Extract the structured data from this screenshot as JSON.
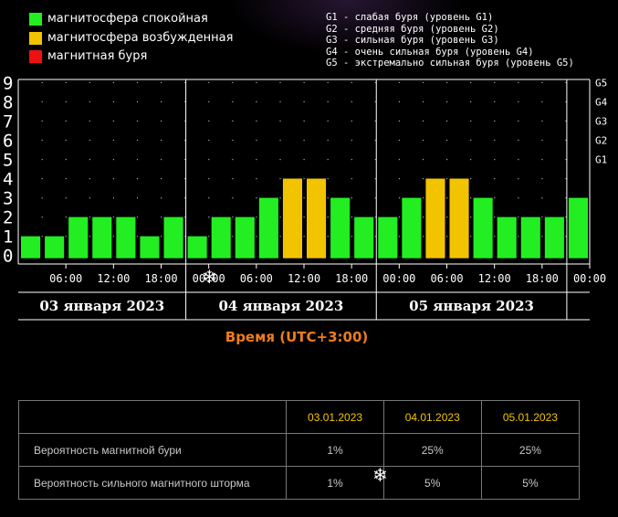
{
  "legend": [
    {
      "label": "магнитосфера спокойная",
      "color": "#22ee22"
    },
    {
      "label": "магнитосфера возбужденная",
      "color": "#f2c400"
    },
    {
      "label": "магнитная буря",
      "color": "#ee1111"
    }
  ],
  "storm_levels": [
    "G1 - слабая буря (уровень G1)",
    "G2 - средняя буря (уровень G2)",
    "G3 - сильная буря (уровень G3)",
    "G4 - очень сильная буря (уровень G4)",
    "G5 - экстремально сильная буря (уровень G5)"
  ],
  "chart_data": {
    "type": "bar",
    "ylim": [
      0,
      9
    ],
    "y_ticks": [
      "0",
      "1",
      "2",
      "3",
      "4",
      "5",
      "6",
      "7",
      "8",
      "9"
    ],
    "right_ticks": [
      "G1",
      "G2",
      "G3",
      "G4",
      "G5"
    ],
    "x_ticks": [
      "06:00",
      "12:00",
      "18:00",
      "00:00",
      "06:00",
      "12:00",
      "18:00",
      "00:00",
      "06:00",
      "12:00",
      "18:00",
      "00:00"
    ],
    "days": [
      "03 января 2023",
      "04 января 2023",
      "05 января 2023"
    ],
    "xlabel": "Время (UTC+3:00)",
    "values": [
      1,
      1,
      2,
      2,
      2,
      1,
      2,
      1,
      2,
      2,
      3,
      4,
      4,
      3,
      2,
      2,
      3,
      4,
      4,
      3,
      2,
      2,
      2,
      3
    ],
    "colors": {
      "quiet": "#22ee22",
      "active": "#f2c400",
      "storm": "#ee1111"
    },
    "grid": "dotted"
  },
  "table": {
    "headers": [
      "",
      "03.01.2023",
      "04.01.2023",
      "05.01.2023"
    ],
    "rows": [
      {
        "label": "Вероятность магнитной бури",
        "values": [
          "1%",
          "25%",
          "25%"
        ]
      },
      {
        "label": "Вероятность сильного магнитного шторма",
        "values": [
          "1%",
          "5%",
          "5%"
        ]
      }
    ]
  }
}
